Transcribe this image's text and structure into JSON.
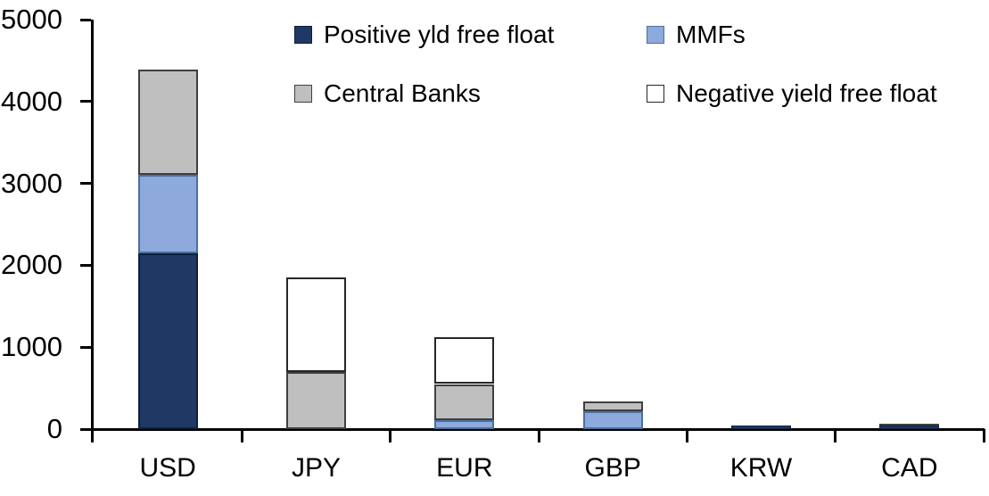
{
  "chart_data": {
    "type": "bar",
    "stacked": true,
    "title": "",
    "xlabel": "",
    "ylabel": "",
    "categories": [
      "USD",
      "JPY",
      "EUR",
      "GBP",
      "KRW",
      "CAD"
    ],
    "series": [
      {
        "name": "Positive yld free float",
        "color": "#1F3864",
        "border_color": "#10203C",
        "values": [
          2150,
          0,
          0,
          0,
          45,
          40
        ]
      },
      {
        "name": "MMFs",
        "color": "#8EA9DB",
        "border_color": "#4A70A0",
        "values": [
          950,
          0,
          110,
          220,
          0,
          0
        ]
      },
      {
        "name": "Central Banks",
        "color": "#BFBFBF",
        "border_color": "#3F3F3F",
        "values": [
          1290,
          700,
          440,
          115,
          0,
          25
        ]
      },
      {
        "name": "Negative yield free float",
        "color": "#FFFFFF",
        "border_color": "#262626",
        "values": [
          0,
          1150,
          570,
          0,
          0,
          0
        ]
      }
    ],
    "ylim": [
      0,
      5000
    ],
    "ytick_interval": 1000,
    "ytick_labels": [
      "0",
      "1000",
      "2000",
      "3000",
      "4000",
      "5000"
    ],
    "grid": false,
    "legend_position": "top",
    "axis_color": "#000000",
    "background_color": "#FFFFFF"
  }
}
